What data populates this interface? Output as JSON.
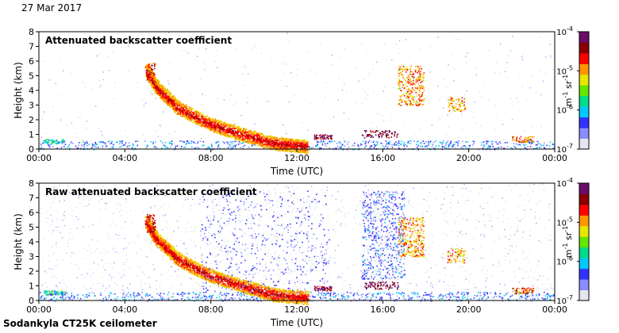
{
  "header": {
    "date": "27 Mar 2017"
  },
  "footer": {
    "instrument": "Sodankyla CT25K ceilometer"
  },
  "colorscale": {
    "colors": [
      "#e6e6f0",
      "#8c8cff",
      "#3232ff",
      "#00c8ff",
      "#00dc8c",
      "#64e600",
      "#e6e600",
      "#ff9600",
      "#ff0000",
      "#8b0000",
      "#6a0d6a"
    ],
    "tick_labels": [
      "10^-7",
      "10^-6",
      "10^-5",
      "10^-4"
    ],
    "unit_label": "m^-1 sr^-1",
    "unit_base": "m",
    "unit_exp1": "-1",
    "unit_mid": "sr",
    "unit_exp2": "-1",
    "exp_labels": [
      "-7",
      "-6",
      "-5",
      "-4"
    ],
    "tick_base": "10"
  },
  "chart_data": [
    {
      "type": "heatmap",
      "title": "Attenuated backscatter coefficient",
      "xlabel": "Time (UTC)",
      "ylabel": "Height (km)",
      "x_ticks": [
        "00:00",
        "04:00",
        "08:00",
        "12:00",
        "16:00",
        "20:00",
        "00:00"
      ],
      "y_ticks": [
        "0",
        "1",
        "2",
        "3",
        "4",
        "5",
        "6",
        "7",
        "8"
      ],
      "xlim_hours": [
        0,
        24
      ],
      "ylim_km": [
        0,
        8
      ],
      "colorbar_range": [
        1e-07,
        0.0001
      ],
      "noise_level": 0.25,
      "features": [
        {
          "name": "surface layer",
          "t": [
            0,
            24
          ],
          "h": [
            0,
            0.6
          ],
          "logv": -6.3
        },
        {
          "name": "early morning cloud",
          "t": [
            0.2,
            1.2
          ],
          "h": [
            0.4,
            0.7
          ],
          "logv": -5.9
        },
        {
          "name": "descending layer",
          "path": [
            [
              5.0,
              5.4
            ],
            [
              5.5,
              4.2
            ],
            [
              6.5,
              2.8
            ],
            [
              8.0,
              1.7
            ],
            [
              9.5,
              1.0
            ],
            [
              11.0,
              0.4
            ],
            [
              12.5,
              0.2
            ]
          ],
          "logv": -5.0
        },
        {
          "name": "upper cloud",
          "t": [
            5.0,
            5.4
          ],
          "h": [
            4.6,
            5.9
          ],
          "logv": -4.6
        },
        {
          "name": "evening low cloud",
          "t": [
            12.8,
            13.6
          ],
          "h": [
            0.7,
            1.0
          ],
          "logv": -4.2
        },
        {
          "name": "afternoon low cloud",
          "t": [
            15.0,
            16.7
          ],
          "h": [
            0.8,
            1.3
          ],
          "logv": -4.2
        },
        {
          "name": "cumulus column",
          "t": [
            16.7,
            17.9
          ],
          "h": [
            3.0,
            5.7
          ],
          "logv": -5.0
        },
        {
          "name": "evening mid cloud",
          "t": [
            19.0,
            19.8
          ],
          "h": [
            2.6,
            3.6
          ],
          "logv": -5.0
        },
        {
          "name": "night low cloud",
          "t": [
            22.0,
            23.0
          ],
          "h": [
            0.5,
            0.9
          ],
          "logv": -4.8
        }
      ]
    },
    {
      "type": "heatmap",
      "title": "Raw attenuated backscatter coefficient",
      "xlabel": "Time (UTC)",
      "ylabel": "Height (km)",
      "x_ticks": [
        "00:00",
        "04:00",
        "08:00",
        "12:00",
        "16:00",
        "20:00",
        "00:00"
      ],
      "y_ticks": [
        "0",
        "1",
        "2",
        "3",
        "4",
        "5",
        "6",
        "7",
        "8"
      ],
      "xlim_hours": [
        0,
        24
      ],
      "ylim_km": [
        0,
        8
      ],
      "colorbar_range": [
        1e-07,
        0.0001
      ],
      "noise_level": 0.9,
      "features": [
        {
          "name": "surface layer",
          "t": [
            0,
            24
          ],
          "h": [
            0,
            0.6
          ],
          "logv": -6.3
        },
        {
          "name": "early morning cloud",
          "t": [
            0.2,
            1.2
          ],
          "h": [
            0.4,
            0.7
          ],
          "logv": -5.9
        },
        {
          "name": "descending layer",
          "path": [
            [
              5.0,
              5.4
            ],
            [
              5.5,
              4.2
            ],
            [
              6.5,
              2.8
            ],
            [
              8.0,
              1.7
            ],
            [
              9.5,
              1.0
            ],
            [
              11.0,
              0.4
            ],
            [
              12.5,
              0.2
            ]
          ],
          "logv": -5.0
        },
        {
          "name": "upper cloud",
          "t": [
            5.0,
            5.4
          ],
          "h": [
            4.6,
            5.9
          ],
          "logv": -4.6
        },
        {
          "name": "evening low cloud",
          "t": [
            12.8,
            13.6
          ],
          "h": [
            0.7,
            1.0
          ],
          "logv": -4.2
        },
        {
          "name": "afternoon low cloud",
          "t": [
            15.0,
            16.7
          ],
          "h": [
            0.8,
            1.3
          ],
          "logv": -4.2
        },
        {
          "name": "cumulus column",
          "t": [
            16.7,
            17.9
          ],
          "h": [
            3.0,
            5.7
          ],
          "logv": -5.0
        },
        {
          "name": "evening mid cloud",
          "t": [
            19.0,
            19.8
          ],
          "h": [
            2.6,
            3.6
          ],
          "logv": -5.0
        },
        {
          "name": "night low cloud",
          "t": [
            22.0,
            23.0
          ],
          "h": [
            0.5,
            0.9
          ],
          "logv": -4.8
        },
        {
          "name": "noise band",
          "t": [
            7.5,
            13.5
          ],
          "h": [
            0.5,
            7.5
          ],
          "logv": -6.6
        },
        {
          "name": "noise band",
          "t": [
            15.0,
            17.0
          ],
          "h": [
            1.5,
            7.5
          ],
          "logv": -6.5
        }
      ]
    }
  ]
}
